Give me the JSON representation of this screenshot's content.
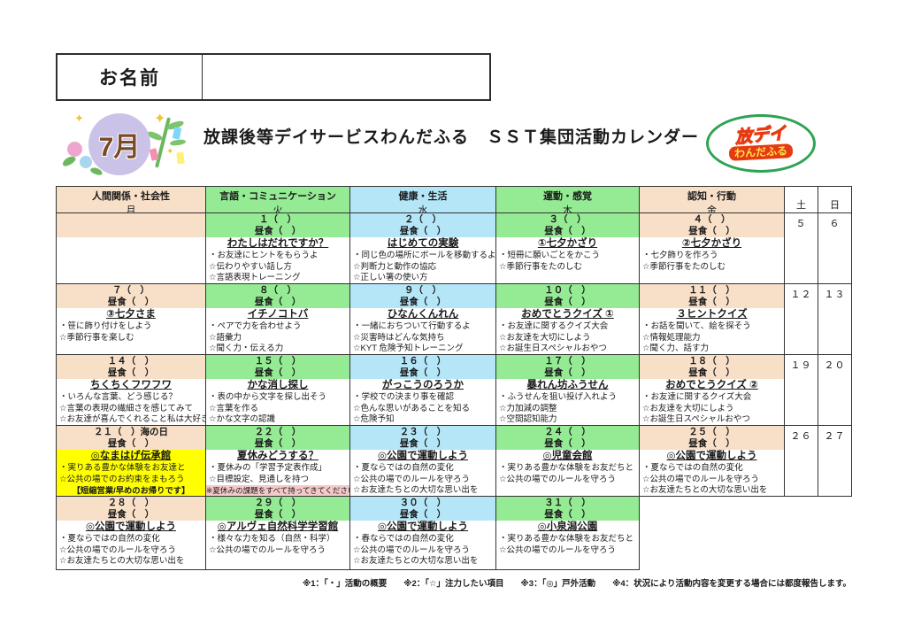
{
  "name_box": {
    "label": "お名前",
    "value": ""
  },
  "header": {
    "month_badge": "7月",
    "title": "放課後等デイサービスわんだふる　ＳＳＴ集団活動カレンダー",
    "logo_top": "放デイ",
    "logo_bottom": "わんだふる"
  },
  "icons": {
    "sparkle": "✦"
  },
  "colors": {
    "monday_friday_band": "#f8dfc8",
    "tuesday_thursday_band": "#94eb94",
    "wednesday_band": "#b4e6f8",
    "highlight_yellow": "#ffff00",
    "reminder_pink": "#f5c9c9",
    "logo_green": "#2fa352",
    "logo_red": "#e63b12"
  },
  "table": {
    "columns": [
      {
        "category": "人間関係・社会性",
        "day": "月"
      },
      {
        "category": "言語・コミュニケーション",
        "day": "火"
      },
      {
        "category": "健康・生活",
        "day": "水"
      },
      {
        "category": "運動・感覚",
        "day": "木"
      },
      {
        "category": "認知・行動",
        "day": "金"
      },
      {
        "day": "土"
      },
      {
        "day": "日"
      }
    ],
    "weeks": [
      {
        "mon": {},
        "tue": {
          "date": "１（　）",
          "lunch": "昼食（　）",
          "title": "わたしはだれですか？",
          "lines": [
            "・お友達にヒントをもらうよ",
            "☆伝わりやすい話し方",
            "☆言語表現トレーニング"
          ]
        },
        "wed": {
          "date": "２（　）",
          "lunch": "昼食（　）",
          "title": "はじめての実験",
          "lines": [
            "・同じ色の場所にボールを移動するよ",
            "☆判断力と動作の協応",
            "☆正しい箸の使い方"
          ]
        },
        "thu": {
          "date": "３（　）",
          "lunch": "昼食（　）",
          "title": "①七夕かざり",
          "lines": [
            "・短冊に願いごとをかこう",
            "☆季節行事をたのしむ"
          ]
        },
        "fri": {
          "date": "４（　）",
          "lunch": "昼食（　）",
          "title": "②七夕かざり",
          "lines": [
            "・七夕飾りを作ろう",
            "☆季節行事をたのしむ"
          ]
        },
        "sat": "５",
        "sun": "６"
      },
      {
        "mon": {
          "date": "７（　）",
          "lunch": "昼食（　）",
          "title": "③七夕さま",
          "lines": [
            "・笹に飾り付けをしよう",
            "☆季節行事を楽しむ"
          ]
        },
        "tue": {
          "date": "８（　）",
          "lunch": "昼食（　）",
          "title": "イチノコトバ",
          "lines": [
            "・ペアで力を合わせよう",
            "☆語彙力",
            "☆聞く力・伝える力"
          ]
        },
        "wed": {
          "date": "９（　）",
          "lunch": "昼食（　）",
          "title": "ひなんくんれん",
          "lines": [
            "・一緒におちついて行動するよ",
            "☆災害時はどんな気持ち",
            "☆KYT 危険予知トレーニング"
          ]
        },
        "thu": {
          "date": "１０（　）",
          "lunch": "昼食（　）",
          "title": "おめでとうクイズ ①",
          "lines": [
            "・お友達に関するクイズ大会",
            "☆お友達を大切にしよう",
            "☆お誕生日スペシャルおやつ"
          ]
        },
        "fri": {
          "date": "１１（　）",
          "lunch": "昼食（　）",
          "title": "３ヒントクイズ",
          "lines": [
            "・お話を聞いて、絵を探そう",
            "☆情報処理能力",
            "☆聞く力、話す力"
          ]
        },
        "sat": "１２",
        "sun": "１３"
      },
      {
        "mon": {
          "date": "１４（　）",
          "lunch": "昼食（　）",
          "title": "ちくちくフワフワ",
          "lines": [
            "・いろんな言葉、どう感じる？",
            "☆言葉の表現の繊細さを感じてみて",
            "☆お友達が喜んでくれること私は大好き"
          ]
        },
        "tue": {
          "date": "１５（　）",
          "lunch": "昼食（　）",
          "title": "かな消し探し",
          "lines": [
            "・表の中から文字を探し出そう",
            "☆言葉を作る",
            "☆かな文字の認識"
          ]
        },
        "wed": {
          "date": "１６（　）",
          "lunch": "昼食（　）",
          "title": "がっこうのろうか",
          "lines": [
            "・学校での決まり事を確認",
            "☆色んな思いがあることを知る",
            "☆危険予知"
          ]
        },
        "thu": {
          "date": "１７（　）",
          "lunch": "昼食（　）",
          "title": "暴れん坊ふうせん",
          "lines": [
            "・ふうせんを狙い投げ入れよう",
            "☆力加減の調整",
            "☆空間認知能力"
          ]
        },
        "fri": {
          "date": "１８（　）",
          "lunch": "昼食（　）",
          "title": "おめでとうクイズ ②",
          "lines": [
            "・お友達に関するクイズ大会",
            "☆お友達を大切にしよう",
            "☆お誕生日スペシャルおやつ"
          ]
        },
        "sat": "１９",
        "sun": "２０"
      },
      {
        "mon": {
          "date": "２１（　）海の日",
          "lunch": "昼食（　）",
          "title": "◎なまはげ伝承館",
          "lines": [
            "・実りある豊かな体験をお友達と",
            "☆公共の場でのお約束をまもろう"
          ],
          "note": "【短縮営業/早めのお帰りです】"
        },
        "tue": {
          "date": "２２（　）",
          "lunch": "昼食（　）",
          "title": "夏休みどうする？",
          "lines": [
            "・夏休みの「学習予定表作成」",
            "☆目標設定、見通しを持つ"
          ],
          "note": "※夏休みの課題をすべて持ってきてください"
        },
        "wed": {
          "date": "２３（　）",
          "lunch": "昼食（　）",
          "title": "◎公園で運動しよう",
          "lines": [
            "・夏ならではの自然の変化",
            "☆公共の場でのルールを守ろう",
            "☆お友達たちとの大切な思い出を"
          ]
        },
        "thu": {
          "date": "２４（　）",
          "lunch": "昼食（　）",
          "title": "◎児童会館",
          "lines": [
            "・実りある豊かな体験をお友だちと",
            "☆公共の場でのルールを守ろう"
          ]
        },
        "fri": {
          "date": "２５（　）",
          "lunch": "昼食（　）",
          "title": "◎公園で運動しよう",
          "lines": [
            "・夏ならではの自然の変化",
            "☆公共の場でのルールを守ろう",
            "☆お友達たちとの大切な思い出を"
          ]
        },
        "sat": "２６",
        "sun": "２７"
      },
      {
        "mon": {
          "date": "２８（　）",
          "lunch": "昼食（　）",
          "title": "◎公園で運動しよう",
          "lines": [
            "・夏ならではの自然の変化",
            "☆公共の場でのルールを守ろう",
            "☆お友達たちとの大切な思い出を"
          ]
        },
        "tue": {
          "date": "２９（　）",
          "lunch": "昼食（　）",
          "title": "◎アルヴェ自然科学学習館",
          "lines": [
            "・様々な力を知る（自然・科学）",
            "☆公共の場でのルールを守ろう"
          ]
        },
        "wed": {
          "date": "３０（　）",
          "lunch": "昼食（　）",
          "title": "◎公園で運動しよう",
          "lines": [
            "・春ならではの自然の変化",
            "☆公共の場でのルールを守ろう",
            "☆お友達たちとの大切な思い出を"
          ]
        },
        "thu": {
          "date": "３１（　）",
          "lunch": "昼食（　）",
          "title": "◎小泉潟公園",
          "lines": [
            "・実りある豊かな体験をお友だちと",
            "☆公共の場でのルールを守ろう"
          ]
        }
      }
    ]
  },
  "footer": "※1：「・」活動の概要　　※2：「☆」注力したい項目　　※3：「◎」戸外活動　　※4：状況により活動内容を変更する場合には都度報告します。"
}
